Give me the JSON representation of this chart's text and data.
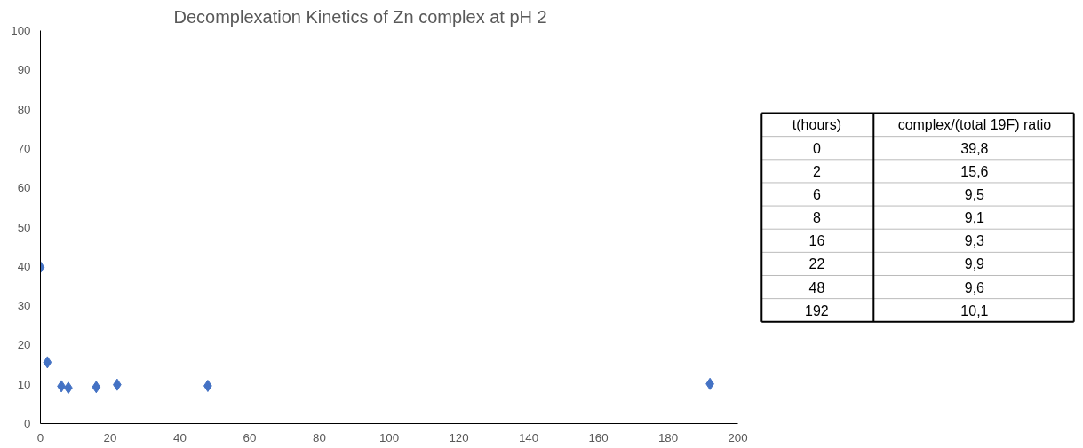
{
  "chart_data": [
    {
      "type": "scatter",
      "title": "Decomplexation Kinetics of Zn complex at pH 2",
      "x": [
        0,
        2,
        6,
        8,
        16,
        22,
        48,
        192
      ],
      "series": [
        {
          "color": "#4472c4",
          "values": [
            39.8,
            15.6,
            9.5,
            9.1,
            9.3,
            9.9,
            9.6,
            10.1
          ]
        }
      ],
      "marker": "diamond",
      "xlim": [
        0,
        200
      ],
      "xticks": [
        0,
        20,
        40,
        60,
        80,
        100,
        120,
        140,
        160,
        180,
        200
      ],
      "ylim": [
        0,
        100
      ],
      "yticks": [
        0,
        10,
        20,
        30,
        40,
        50,
        60,
        70,
        80,
        90,
        100
      ],
      "grid": false
    },
    {
      "type": "other",
      "annotations": [
        "t(hours)",
        "complex/(total 19F) ratio",
        "0",
        "39,8",
        "2",
        "15,6",
        "6",
        "9,5",
        "8",
        "9,1",
        "16",
        "9,3",
        "22",
        "9,9",
        "48",
        "9,6",
        "192",
        "10,1"
      ]
    }
  ]
}
